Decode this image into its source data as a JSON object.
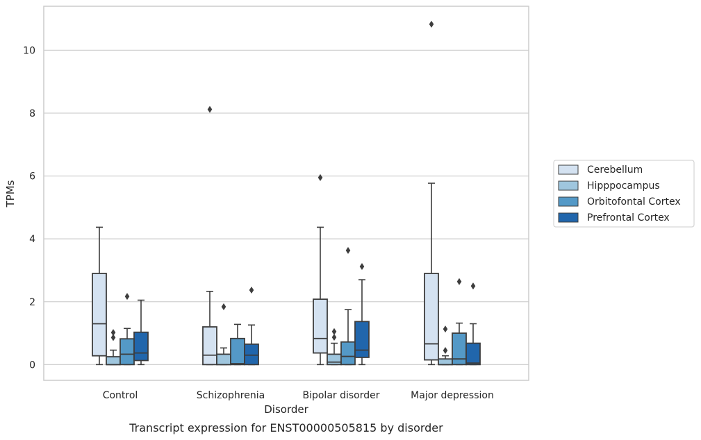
{
  "caption": "Transcript expression for ENST00000505815 by disorder",
  "chart_data": {
    "type": "box",
    "xlabel": "Disorder",
    "ylabel": "TPMs",
    "ylim": [
      -0.5,
      11.4
    ],
    "yticks": [
      0,
      2,
      4,
      6,
      8,
      10
    ],
    "grid": "horizontal",
    "legend_placement": "center-right, outside plot",
    "categories": [
      "Control",
      "Schizophrenia",
      "Bipolar disorder",
      "Major depression"
    ],
    "series": [
      {
        "name": "Cerebellum",
        "color": "#d4e2f1",
        "boxes": [
          {
            "whislo": 0,
            "q1": 0.28,
            "med": 1.3,
            "q3": 2.9,
            "whishi": 4.37,
            "fliers": []
          },
          {
            "whislo": 0,
            "q1": 0,
            "med": 0.3,
            "q3": 1.2,
            "whishi": 2.33,
            "fliers": [
              8.12
            ]
          },
          {
            "whislo": 0,
            "q1": 0.37,
            "med": 0.83,
            "q3": 2.08,
            "whishi": 4.37,
            "fliers": [
              5.95
            ]
          },
          {
            "whislo": 0,
            "q1": 0.15,
            "med": 0.66,
            "q3": 2.9,
            "whishi": 5.77,
            "fliers": [
              10.83
            ]
          }
        ]
      },
      {
        "name": "Hipppocampus",
        "color": "#9fc6de",
        "boxes": [
          {
            "whislo": 0,
            "q1": 0,
            "med": 0,
            "q3": 0.25,
            "whishi": 0.46,
            "fliers": [
              0.86,
              1.02
            ]
          },
          {
            "whislo": 0,
            "q1": 0,
            "med": 0,
            "q3": 0.33,
            "whishi": 0.53,
            "fliers": [
              1.84
            ]
          },
          {
            "whislo": 0,
            "q1": 0,
            "med": 0.08,
            "q3": 0.33,
            "whishi": 0.68,
            "fliers": [
              0.87,
              1.05
            ]
          },
          {
            "whislo": 0,
            "q1": 0,
            "med": 0,
            "q3": 0.18,
            "whishi": 0.28,
            "fliers": [
              0.45,
              1.13
            ]
          }
        ]
      },
      {
        "name": "Orbitofontal Cortex",
        "color": "#5499c7",
        "boxes": [
          {
            "whislo": 0,
            "q1": 0,
            "med": 0.33,
            "q3": 0.82,
            "whishi": 1.15,
            "fliers": [
              2.17
            ]
          },
          {
            "whislo": 0,
            "q1": 0,
            "med": 0.03,
            "q3": 0.83,
            "whishi": 1.28,
            "fliers": []
          },
          {
            "whislo": 0,
            "q1": 0,
            "med": 0.26,
            "q3": 0.72,
            "whishi": 1.75,
            "fliers": [
              3.63
            ]
          },
          {
            "whislo": 0,
            "q1": 0,
            "med": 0.18,
            "q3": 1.0,
            "whishi": 1.32,
            "fliers": [
              2.64
            ]
          }
        ]
      },
      {
        "name": "Prefrontal Cortex",
        "color": "#2166ac",
        "boxes": [
          {
            "whislo": 0,
            "q1": 0.13,
            "med": 0.37,
            "q3": 1.03,
            "whishi": 2.05,
            "fliers": []
          },
          {
            "whislo": 0,
            "q1": 0,
            "med": 0.3,
            "q3": 0.65,
            "whishi": 1.26,
            "fliers": [
              2.37
            ]
          },
          {
            "whislo": 0,
            "q1": 0.23,
            "med": 0.46,
            "q3": 1.37,
            "whishi": 2.7,
            "fliers": [
              3.12
            ]
          },
          {
            "whislo": 0,
            "q1": 0,
            "med": 0.05,
            "q3": 0.68,
            "whishi": 1.3,
            "fliers": [
              2.5
            ]
          }
        ]
      }
    ]
  }
}
